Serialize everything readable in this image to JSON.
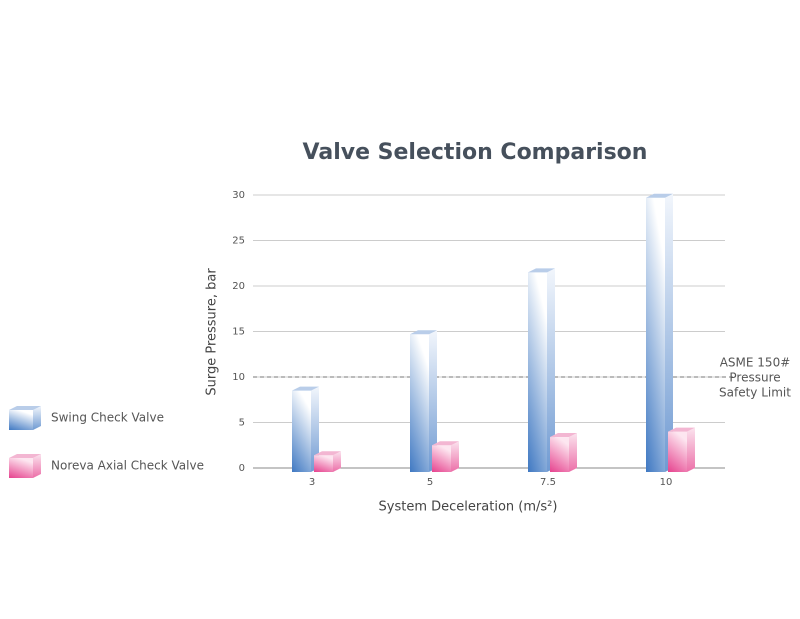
{
  "chart_data": {
    "type": "bar3d",
    "title": "Valve Selection Comparison",
    "x_label": "System Deceleration (m/s²)",
    "y_label": "Surge Pressure, bar",
    "categories": [
      "3",
      "5",
      "7.5",
      "10"
    ],
    "series": [
      {
        "name": "Swing Check Valve",
        "color": "#4a7fc4",
        "values": [
          8.5,
          14.7,
          21.5,
          29.7
        ]
      },
      {
        "name": "Noreva Axial Check Valve",
        "color": "#e8559a",
        "values": [
          1.4,
          2.5,
          3.4,
          4.0
        ]
      }
    ],
    "ylim": [
      0,
      30
    ],
    "yticks": [
      0,
      5,
      10,
      15,
      20,
      25,
      30
    ],
    "grid": true,
    "reference_line": {
      "value": 10,
      "label_lines": [
        "ASME 150#",
        "Pressure",
        "Safety Limit"
      ]
    },
    "legend": "left"
  }
}
